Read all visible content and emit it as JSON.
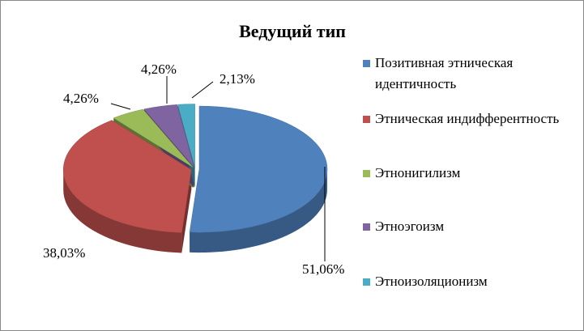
{
  "chart_data": {
    "type": "pie",
    "title": "Ведущий тип",
    "categories": [
      "Позитивная этническая идентичность",
      "Этническая индифферентность",
      "Этнонигилизм",
      "Этноэгоизм",
      "Этноизоляционизм"
    ],
    "values": [
      51.06,
      38.03,
      4.26,
      4.26,
      2.13
    ],
    "value_labels": [
      "51,06%",
      "38,03%",
      "4,26%",
      "4,26%",
      "2,13%"
    ],
    "colors": [
      "#4f81bd",
      "#c0504d",
      "#9bbb59",
      "#8064a2",
      "#4bacc6"
    ]
  }
}
